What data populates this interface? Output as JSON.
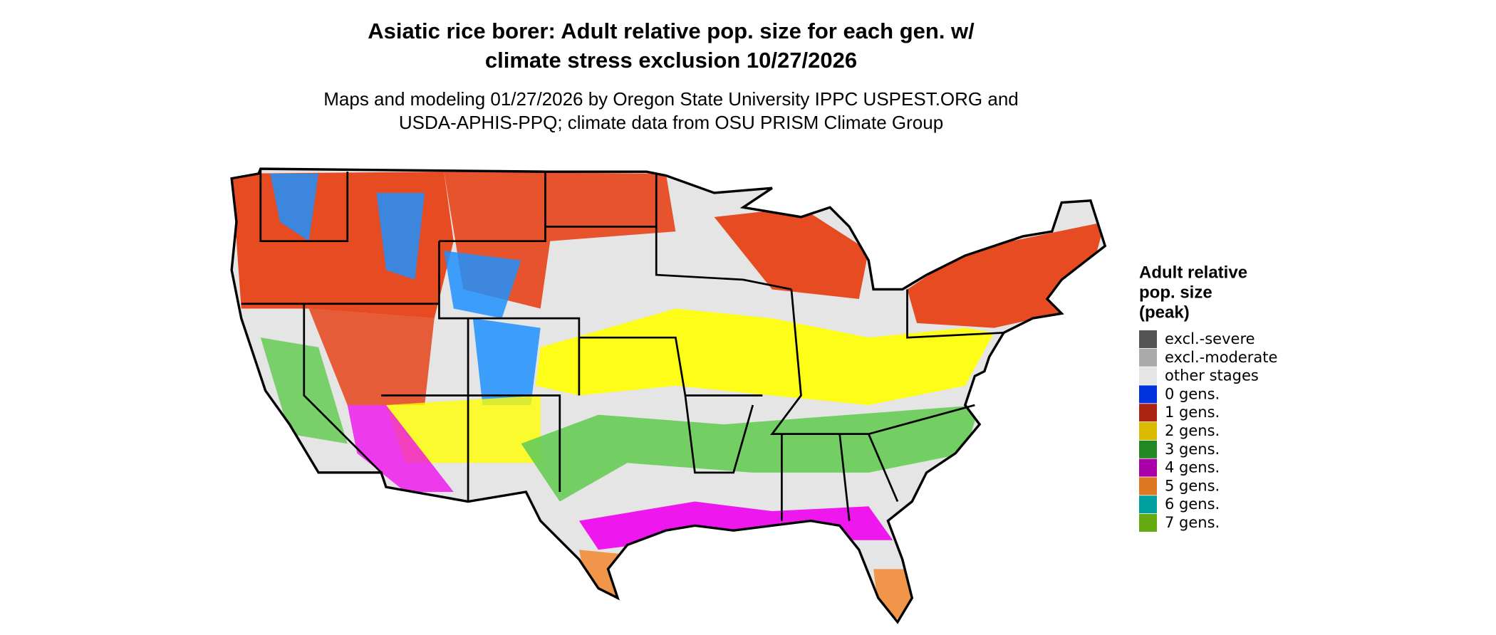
{
  "header": {
    "title": [
      "Asiatic rice borer: Adult relative pop. size for each gen. w/",
      "climate stress exclusion 10/27/2026"
    ],
    "subtitle": [
      "Maps and modeling 01/27/2026 by Oregon State University IPPC USPEST.ORG and",
      "USDA-APHIS-PPQ; climate data from OSU PRISM Climate Group"
    ]
  },
  "legend": {
    "title": [
      "Adult relative",
      "pop. size",
      "(peak)"
    ],
    "items": [
      {
        "label": "excl.-severe",
        "color": "#555555"
      },
      {
        "label": "excl.-moderate",
        "color": "#aaaaaa"
      },
      {
        "label": "other stages",
        "color": "#e5e5e5"
      },
      {
        "label": "0 gens.",
        "color": "#0033dd"
      },
      {
        "label": "1 gens.",
        "color": "#aa2211"
      },
      {
        "label": "2 gens.",
        "color": "#ddbb00"
      },
      {
        "label": "3 gens.",
        "color": "#228822"
      },
      {
        "label": "4 gens.",
        "color": "#aa00aa"
      },
      {
        "label": "5 gens.",
        "color": "#dd7722"
      },
      {
        "label": "6 gens.",
        "color": "#00a0a0"
      },
      {
        "label": "7 gens.",
        "color": "#66aa11"
      }
    ]
  }
}
